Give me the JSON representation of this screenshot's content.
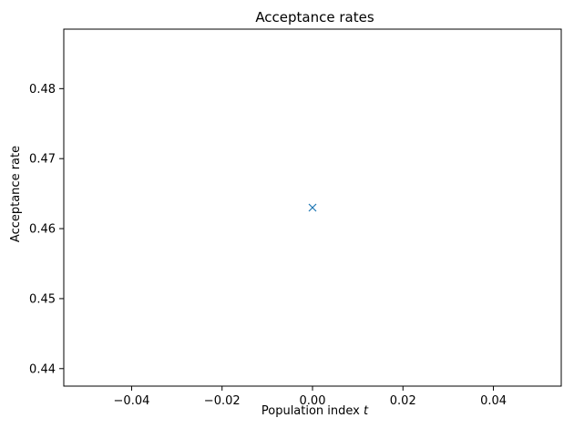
{
  "chart_data": {
    "type": "scatter",
    "title": "Acceptance rates",
    "xlabel": "Population index",
    "xlabel_var": "t",
    "ylabel": "Acceptance rate",
    "xlim": [
      -0.055,
      0.055
    ],
    "ylim": [
      0.4375,
      0.4885
    ],
    "xticks": [
      -0.04,
      -0.02,
      0.0,
      0.02,
      0.04
    ],
    "xtick_labels": [
      "−0.04",
      "−0.02",
      "0.00",
      "0.02",
      "0.04"
    ],
    "yticks": [
      0.44,
      0.45,
      0.46,
      0.47,
      0.48
    ],
    "ytick_labels": [
      "0.44",
      "0.45",
      "0.46",
      "0.47",
      "0.48"
    ],
    "grid": false,
    "marker": "x",
    "color": "#1f77b4",
    "points": [
      {
        "x": 0.0,
        "y": 0.463
      }
    ]
  }
}
